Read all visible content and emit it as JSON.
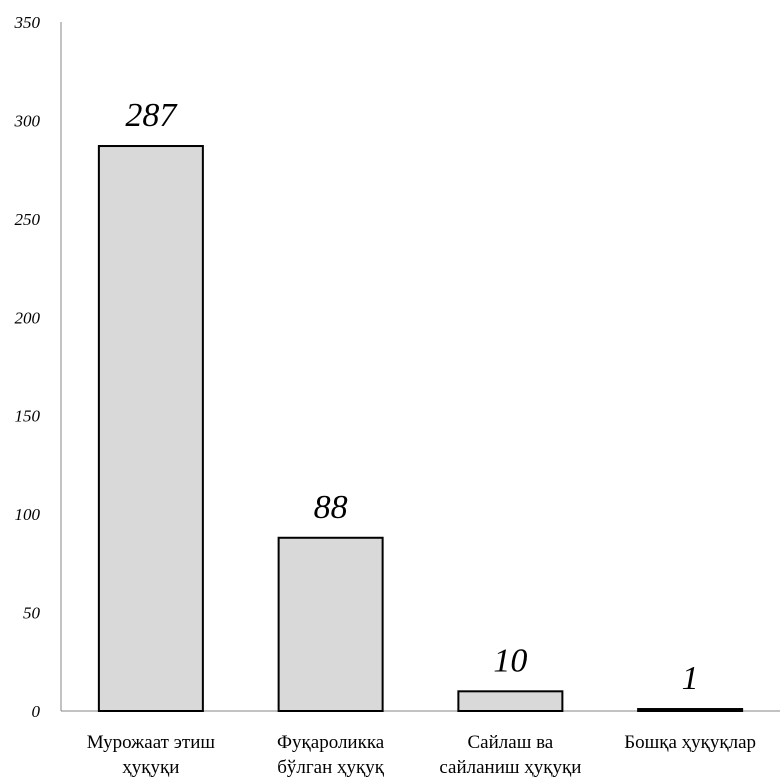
{
  "chart_data": {
    "type": "bar",
    "categories": [
      [
        "Мурожаат этиш",
        "ҳуқуқи"
      ],
      [
        "Фуқароликка",
        "бўлган ҳуқуқ"
      ],
      [
        "Сайлаш ва",
        "сайланиш ҳуқуқи"
      ],
      [
        "Бошқа ҳуқуқлар"
      ]
    ],
    "values": [
      287,
      88,
      10,
      1
    ],
    "value_labels": [
      "287",
      "88",
      "10",
      "1"
    ],
    "ylim": [
      0,
      350
    ],
    "yticks": [
      0,
      50,
      100,
      150,
      200,
      250,
      300,
      350
    ],
    "ytick_labels": [
      "0",
      "50",
      "100",
      "150",
      "200",
      "250",
      "300",
      "350"
    ],
    "grid": false,
    "legend": "none",
    "bar_color": "#d9d9d9",
    "bar_edge_color": "#000000"
  }
}
